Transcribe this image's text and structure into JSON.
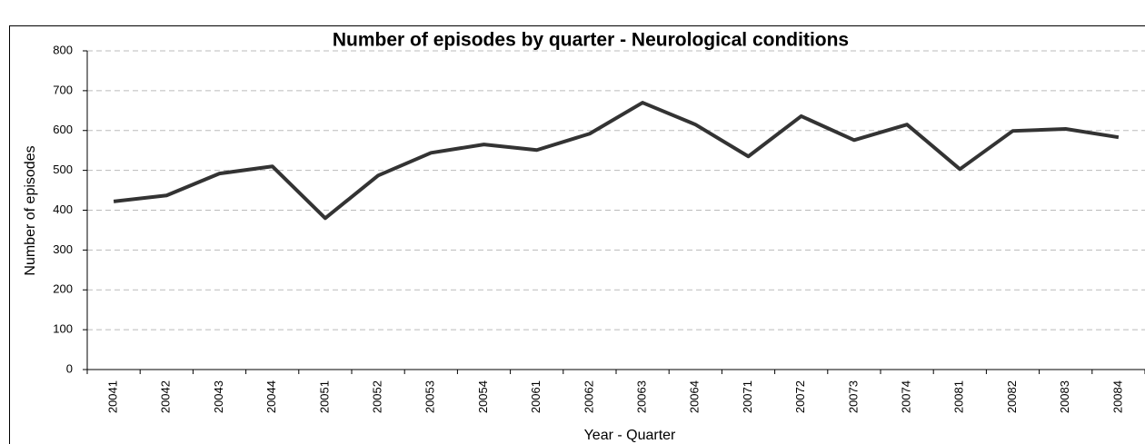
{
  "chart_data": {
    "type": "line",
    "title": "Number of episodes by quarter - Neurological conditions",
    "x_label": "Year - Quarter",
    "y_label": "Number of episodes",
    "categories": [
      "20041",
      "20042",
      "20043",
      "20044",
      "20051",
      "20052",
      "20053",
      "20054",
      "20061",
      "20062",
      "20063",
      "20064",
      "20071",
      "20072",
      "20073",
      "20074",
      "20081",
      "20082",
      "20083",
      "20084"
    ],
    "series": [
      {
        "color": "#333333",
        "values": [
          422,
          437,
          492,
          510,
          380,
          487,
          544,
          565,
          551,
          592,
          670,
          615,
          535,
          636,
          576,
          615,
          503,
          599,
          604,
          583
        ]
      }
    ],
    "ylim": [
      0,
      800
    ],
    "yticks": [
      0,
      100,
      200,
      300,
      400,
      500,
      600,
      700,
      800
    ],
    "grid": true
  }
}
